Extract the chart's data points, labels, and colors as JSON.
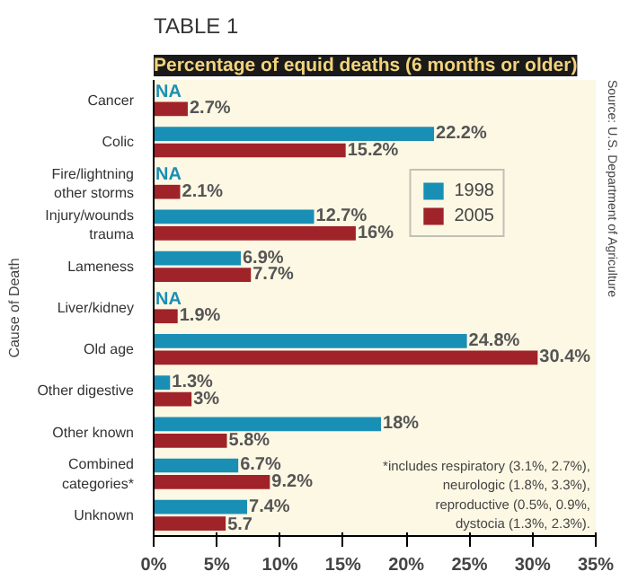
{
  "chart_data": {
    "type": "bar",
    "orientation": "horizontal",
    "subtitle": "TABLE 1",
    "title": "Percentage of equid deaths (6 months or older)",
    "ylabel": "Cause of Death",
    "categories": [
      "Cancer",
      "Colic",
      "Fire/lightning\nother storms",
      "Injury/wounds\ntrauma",
      "Lameness",
      "Liver/kidney",
      "Old age",
      "Other digestive",
      "Other known",
      "Combined\ncategories*",
      "Unknown"
    ],
    "series": [
      {
        "name": "1998",
        "color": "#1a8fb5",
        "values": [
          null,
          22.2,
          null,
          12.7,
          6.9,
          null,
          24.8,
          1.3,
          18,
          6.7,
          7.4
        ],
        "value_labels": [
          "NA",
          "22.2%",
          "NA",
          "12.7%",
          "6.9%",
          "NA",
          "24.8%",
          "1.3%",
          "18%",
          "6.7%",
          "7.4%"
        ]
      },
      {
        "name": "2005",
        "color": "#a0232a",
        "values": [
          2.7,
          15.2,
          2.1,
          16,
          7.7,
          1.9,
          30.4,
          3,
          5.8,
          9.2,
          5.7
        ],
        "value_labels": [
          "2.7%",
          "15.2%",
          "2.1%",
          "16%",
          "7.7%",
          "1.9%",
          "30.4%",
          "3%",
          "5.8%",
          "9.2%",
          "5.7"
        ]
      }
    ],
    "xlim": [
      0,
      35
    ],
    "xticks": [
      {
        "value": 0,
        "label": "0%"
      },
      {
        "value": 5,
        "label": "5%"
      },
      {
        "value": 10,
        "label": "10%"
      },
      {
        "value": 15,
        "label": "15%"
      },
      {
        "value": 20,
        "label": "20%"
      },
      {
        "value": 25,
        "label": "25%"
      },
      {
        "value": 30,
        "label": "30%"
      },
      {
        "value": 35,
        "label": "35%"
      }
    ],
    "grid": false,
    "legend": "top right",
    "annotations": [
      "*includes respiratory (3.1%, 2.7%),\nneurologic (1.8%, 3.3%),\nreproductive (0.5%, 0.9%,\ndystocia (1.3%, 2.3%).",
      "Source: U.S. Department of Agriculture"
    ]
  }
}
